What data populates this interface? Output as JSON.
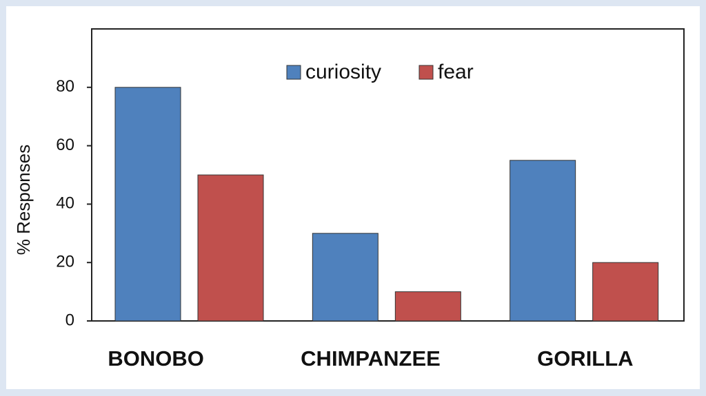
{
  "chart_data": {
    "type": "bar",
    "y_label": "% Responses",
    "categories": [
      "BONOBO",
      "CHIMPANZEE",
      "GORILLA"
    ],
    "series": [
      {
        "name": "curiosity",
        "color": "#4f81bd",
        "values": [
          80,
          30,
          55
        ]
      },
      {
        "name": "fear",
        "color": "#c0504d",
        "values": [
          50,
          10,
          20
        ]
      }
    ],
    "ylim": [
      0,
      100
    ],
    "yticks": [
      0,
      20,
      40,
      60,
      80
    ],
    "grid": false,
    "legend": "top"
  }
}
